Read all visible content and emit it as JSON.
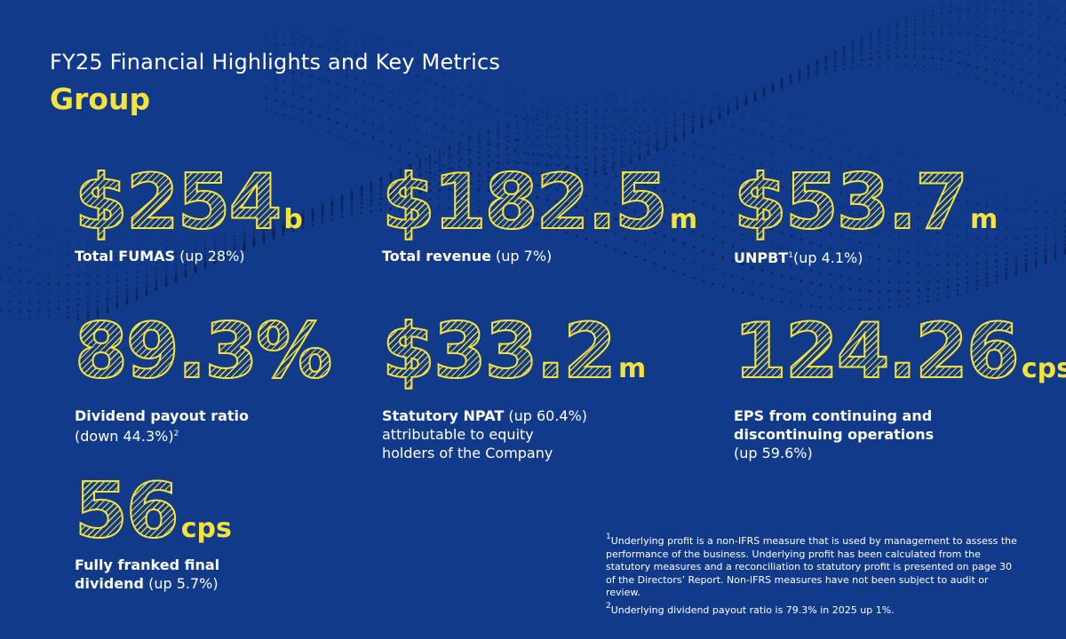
{
  "page": {
    "title": "FY25 Financial Highlights and Key Metrics",
    "subtitle": "Group",
    "accent_color": "#f5e23c",
    "background_color": "#123a8b"
  },
  "metrics": [
    {
      "value": "$254",
      "unit": "b",
      "label_bold": "Total FUMAS",
      "label_rest": " (up 28%)"
    },
    {
      "value": "$182.5",
      "unit": "m",
      "label_bold": "Total revenue",
      "label_rest": " (up 7%)"
    },
    {
      "value": "$53.7",
      "unit": "m",
      "label_bold": "UNPBT",
      "label_sup": "1",
      "label_rest": "(up 4.1%)"
    },
    {
      "value": "89.3%",
      "unit": "",
      "label_bold": "Dividend payout ratio",
      "label_line2": "(down 44.3%)",
      "label_sup2": "2"
    },
    {
      "value": "$33.2",
      "unit": "m",
      "label_bold": "Statutory NPAT",
      "label_rest": " (up 60.4%)",
      "label_line2": "attributable to equity",
      "label_line3": "holders of the Company"
    },
    {
      "value": "124.26",
      "unit": "cps",
      "label_bold": "EPS from continuing and",
      "label_bold2": "discontinuing operations",
      "label_line3": "(up 59.6%)"
    },
    {
      "value": "56",
      "unit": "cps",
      "label_bold": "Fully franked final",
      "label_bold2": "dividend",
      "label_rest2": " (up 5.7%)"
    }
  ],
  "footnotes": {
    "note1_marker": "1",
    "note1": "Underlying profit is a non-IFRS measure that is used by management to assess the performance of the business. Underlying profit has been calculated from the statutory measures and a reconciliation to statutory profit is presented on page 30 of the Directors’ Report. Non-IFRS measures have not been subject to audit or review.",
    "note2_marker": "2",
    "note2": "Underlying dividend payout ratio is 79.3% in 2025 up 1%."
  }
}
